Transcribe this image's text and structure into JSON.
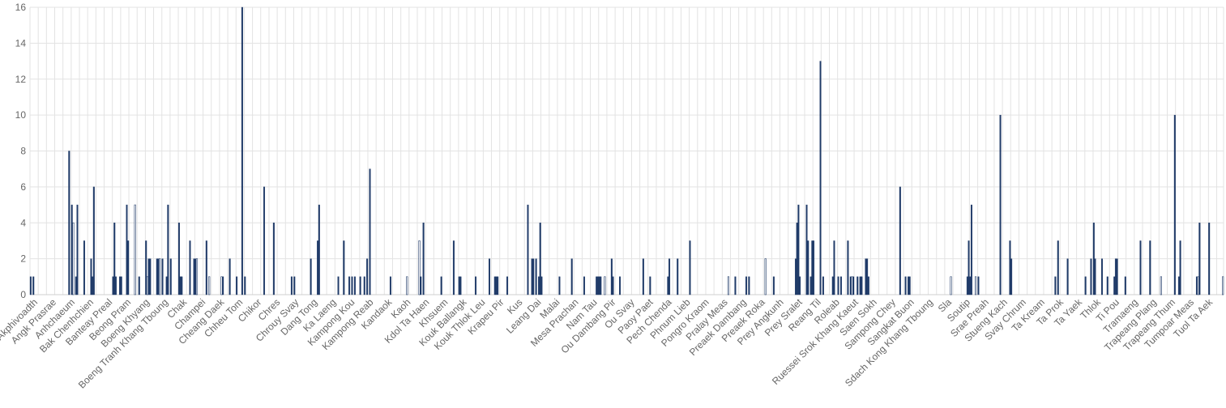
{
  "chart_data": {
    "type": "bar",
    "title": "",
    "xlabel": "",
    "ylabel": "",
    "ylim": [
      0,
      16
    ],
    "yticks": [
      0,
      2,
      4,
      6,
      8,
      10,
      12,
      14,
      16
    ],
    "grid": true,
    "legend": "none",
    "bar_color": "#1f3a68",
    "bar_light_color": "#ffffff",
    "grid_color": "#e3e3e3",
    "labeled_categories": [
      "Akphivoadth",
      "Angk Prasrae",
      "Anhchaeum",
      "Bak Chenhchien",
      "Banteay Preal",
      "Beong Pram",
      "Boeng Khyang",
      "Boeng Tranh Khang Tboung",
      "Chak",
      "Champei",
      "Cheang Daek",
      "Chheu Tom",
      "Chikor",
      "Chres",
      "Chrouy Svay",
      "Dang Tong",
      "Ka Laeng",
      "Kampong Kou",
      "Kampong Reab",
      "Kandaok",
      "Kaoh",
      "Kdol Ta Haen",
      "Khsuem",
      "Kouk Ballangk",
      "Kouk Thlok Leu",
      "Krapeu Pir",
      "Kus",
      "Leang Dai",
      "Malai",
      "Mesa Prachan",
      "Nam Tau",
      "Ou Dambang Pir",
      "Ou Svay",
      "Paoy Paet",
      "Pech Chenda",
      "Phnum Lieb",
      "Pongro Kraom",
      "Pralay Meas",
      "Preaek Dambang",
      "Preaek Roka",
      "Prey Angkunh",
      "Prey Sralet",
      "Reang Til",
      "Roleab",
      "Ruessei Srok Khang Kaeut",
      "Saen Sokh",
      "Sampong Chey",
      "Sangkat Buon",
      "Sdach Kong Khang Tboung",
      "Sla",
      "Soutip",
      "Srae Preah",
      "Stueng Kach",
      "Svay Chrum",
      "Ta Kream",
      "Ta Prok",
      "Ta Yaek",
      "Thlok",
      "Ti Pou",
      "Tramaeng",
      "Trapeang Plang",
      "Trapeang Thum",
      "Tumpoar Meas",
      "Tuol Ta Aek"
    ],
    "values": [
      1,
      0,
      1,
      0,
      0,
      0,
      0,
      0,
      0,
      0,
      0,
      0,
      0,
      0,
      0,
      0,
      0,
      0,
      0,
      0,
      0,
      0,
      0,
      0,
      0,
      0,
      0,
      0,
      8,
      0,
      5,
      4,
      0,
      1,
      5,
      0,
      0,
      0,
      0,
      3,
      0,
      0,
      0,
      0,
      2,
      1,
      6,
      0,
      0,
      0,
      0,
      0,
      0,
      0,
      0,
      0,
      0,
      0,
      0,
      0,
      1,
      4,
      1,
      0,
      0,
      1,
      1,
      0,
      0,
      0,
      5,
      3,
      0,
      0,
      0,
      0,
      5,
      0,
      0,
      1,
      0,
      0,
      0,
      0,
      3,
      1,
      2,
      2,
      0,
      0,
      0,
      0,
      2,
      2,
      2,
      0,
      2,
      0,
      0,
      1,
      5,
      0,
      2,
      0,
      0,
      0,
      0,
      0,
      4,
      1,
      1,
      0,
      0,
      0,
      0,
      0,
      3,
      0,
      0,
      2,
      2,
      2,
      0,
      0,
      0,
      0,
      0,
      0,
      3,
      0,
      1,
      0,
      0,
      0,
      0,
      0,
      0,
      0,
      0,
      1,
      1,
      0,
      0,
      0,
      0,
      2,
      0,
      0,
      0,
      0,
      1,
      0,
      0,
      0,
      16,
      0,
      1,
      0,
      0,
      0,
      0,
      0,
      0,
      0,
      0,
      0,
      0,
      0,
      0,
      0,
      6,
      0,
      0,
      0,
      0,
      0,
      0,
      4,
      0,
      0,
      0,
      0,
      0,
      0,
      0,
      0,
      0,
      0,
      0,
      0,
      1,
      0,
      1,
      0,
      0,
      0,
      0,
      0,
      0,
      0,
      0,
      0,
      0,
      0,
      2,
      0,
      0,
      0,
      0,
      3,
      5,
      0,
      0,
      0,
      0,
      0,
      0,
      0,
      0,
      0,
      0,
      0,
      0,
      0,
      1,
      0,
      0,
      0,
      3,
      0,
      0,
      0,
      1,
      0,
      1,
      0,
      1,
      0,
      0,
      0,
      1,
      0,
      0,
      1,
      0,
      2,
      0,
      7,
      0,
      0,
      0,
      0,
      0,
      0,
      0,
      0,
      0,
      0,
      0,
      0,
      0,
      0,
      1,
      0,
      0,
      0,
      0,
      0,
      0,
      0,
      0,
      0,
      0,
      0,
      1,
      0,
      0,
      0,
      0,
      0,
      0,
      0,
      0,
      3,
      1,
      0,
      4,
      0,
      0,
      0,
      0,
      0,
      0,
      0,
      0,
      0,
      0,
      0,
      0,
      1,
      0,
      0,
      0,
      0,
      0,
      0,
      0,
      0,
      3,
      0,
      0,
      0,
      1,
      1,
      0,
      0,
      0,
      0,
      0,
      0,
      0,
      0,
      0,
      0,
      1,
      0,
      0,
      0,
      0,
      0,
      0,
      0,
      0,
      0,
      2,
      0,
      0,
      0,
      1,
      1,
      1,
      0,
      0,
      0,
      0,
      0,
      0,
      1,
      0,
      0,
      0,
      0,
      0,
      0,
      0,
      0,
      0,
      0,
      0,
      0,
      0,
      0,
      5,
      0,
      0,
      2,
      2,
      0,
      2,
      0,
      1,
      4,
      1,
      0,
      0,
      0,
      0,
      0,
      0,
      0,
      0,
      0,
      0,
      0,
      0,
      1,
      0,
      0,
      0,
      0,
      0,
      0,
      0,
      0,
      2,
      0,
      0,
      0,
      0,
      0,
      0,
      0,
      0,
      1,
      0,
      0,
      0,
      0,
      0,
      0,
      0,
      0,
      1,
      1,
      1,
      1,
      0,
      0,
      1,
      0,
      0,
      0,
      0,
      2,
      1,
      0,
      0,
      0,
      0,
      1,
      0,
      0,
      0,
      0,
      0,
      0,
      0,
      0,
      0,
      0,
      0,
      0,
      0,
      0,
      0,
      0,
      2,
      0,
      0,
      0,
      0,
      1,
      0,
      0,
      0,
      0,
      0,
      0,
      0,
      0,
      0,
      0,
      0,
      0,
      1,
      2,
      0,
      0,
      0,
      0,
      0,
      2,
      0,
      0,
      0,
      0,
      0,
      0,
      0,
      0,
      3,
      0,
      0,
      0,
      0,
      0,
      0,
      0,
      0,
      0,
      0,
      0,
      0,
      0,
      0,
      0,
      0,
      0,
      0,
      0,
      0,
      0,
      0,
      0,
      0,
      0,
      0,
      0,
      1,
      0,
      0,
      0,
      0,
      1,
      0,
      0,
      0,
      0,
      0,
      0,
      0,
      1,
      0,
      1,
      0,
      0,
      0,
      0,
      0,
      0,
      0,
      0,
      0,
      0,
      0,
      2,
      0,
      0,
      0,
      0,
      0,
      1,
      0,
      0,
      0,
      0,
      0,
      0,
      0,
      0,
      0,
      0,
      0,
      0,
      0,
      0,
      0,
      2,
      4,
      5,
      1,
      0,
      0,
      0,
      0,
      5,
      3,
      0,
      1,
      3,
      3,
      0,
      0,
      0,
      0,
      13,
      0,
      1,
      0,
      0,
      0,
      0,
      0,
      0,
      1,
      3,
      0,
      0,
      1,
      0,
      1,
      0,
      0,
      0,
      0,
      3,
      0,
      1,
      1,
      1,
      0,
      0,
      1,
      0,
      1,
      1,
      0,
      0,
      2,
      2,
      1,
      0,
      0,
      0,
      0,
      0,
      0,
      0,
      0,
      0,
      0,
      0,
      0,
      0,
      0,
      0,
      0,
      0,
      0,
      0,
      0,
      0,
      0,
      6,
      0,
      0,
      0,
      1,
      0,
      1,
      1,
      0,
      0,
      0,
      0,
      0,
      0,
      0,
      0,
      0,
      0,
      0,
      0,
      0,
      0,
      0,
      0,
      0,
      0,
      0,
      0,
      0,
      0,
      0,
      0,
      0,
      0,
      0,
      0,
      0,
      1,
      0,
      0,
      0,
      0,
      0,
      0,
      0,
      0,
      0,
      0,
      0,
      1,
      3,
      1,
      5,
      0,
      0,
      1,
      0,
      1,
      0,
      0,
      0,
      0,
      0,
      0,
      0,
      0,
      0,
      0,
      0,
      0,
      0,
      0,
      0,
      10,
      0,
      0,
      0,
      0,
      0,
      0,
      3,
      2,
      0,
      0,
      0,
      0,
      0,
      0,
      0,
      0,
      0,
      0,
      0,
      0,
      0,
      0,
      0,
      0,
      0,
      0,
      0,
      0,
      0,
      0,
      0,
      0,
      0,
      0,
      0,
      0,
      0,
      0,
      0,
      1,
      0,
      3,
      0,
      0,
      0,
      0,
      0,
      0,
      2,
      0,
      0,
      0,
      0,
      0,
      0,
      0,
      0,
      0,
      0,
      0,
      0,
      1,
      0,
      0,
      0,
      2,
      0,
      4,
      2,
      0,
      0,
      0,
      0,
      2,
      0,
      0,
      0,
      1,
      0,
      0,
      0,
      0,
      1,
      2,
      2,
      0,
      0,
      0,
      0,
      0,
      1,
      0,
      0,
      0,
      0,
      0,
      0,
      0,
      0,
      0,
      0,
      3,
      0,
      0,
      0,
      0,
      0,
      0,
      3,
      0,
      0,
      0,
      0,
      0,
      0,
      0,
      1,
      0,
      0,
      0,
      0,
      0,
      0,
      0,
      0,
      0,
      10,
      0,
      0,
      1,
      3,
      0,
      0,
      0,
      0,
      0,
      0,
      0,
      0,
      0,
      0,
      0,
      1,
      1,
      4,
      0,
      0,
      0,
      0,
      0,
      0,
      4,
      0,
      0,
      0,
      0,
      0,
      0,
      0,
      0,
      0,
      1
    ]
  }
}
